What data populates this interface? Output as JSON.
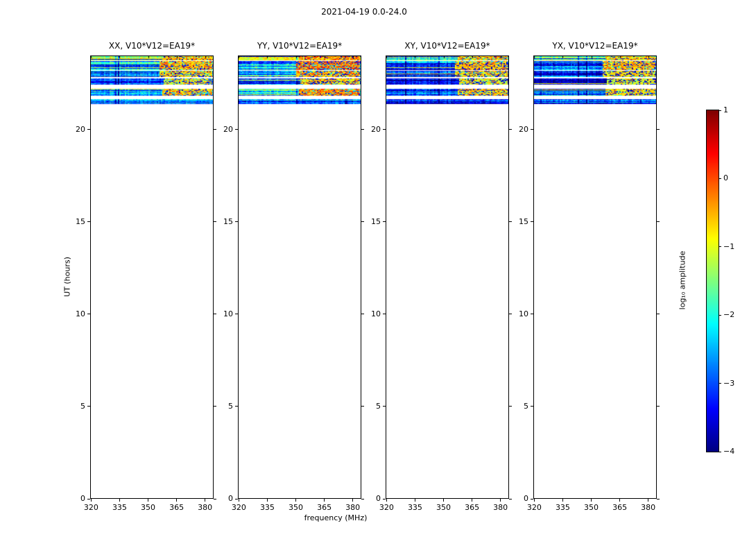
{
  "chart_data": {
    "type": "heatmap",
    "title": "2021-04-19 0.0-24.0",
    "panels": [
      {
        "key": "xx",
        "label": "XX, V10*V12=EA19*",
        "base_shift": 0,
        "hot_shift": 0,
        "hot_extend_mhz": 0,
        "seed": 101
      },
      {
        "key": "yy",
        "label": "YY, V10*V12=EA19*",
        "base_shift": 0.05,
        "hot_shift": 0.25,
        "hot_extend_mhz": 6,
        "seed": 202
      },
      {
        "key": "xy",
        "label": "XY, V10*V12=EA19*",
        "base_shift": -0.55,
        "hot_shift": -0.05,
        "hot_extend_mhz": 0,
        "seed": 303
      },
      {
        "key": "yx",
        "label": "YX, V10*V12=EA19*",
        "base_shift": -0.3,
        "hot_shift": -0.1,
        "hot_extend_mhz": 0,
        "seed": 404
      }
    ],
    "x": {
      "label": "frequency (MHz)",
      "range": [
        319.5,
        384.5
      ],
      "ticks": [
        320,
        335,
        350,
        365,
        380
      ]
    },
    "y": {
      "label": "UT (hours)",
      "range": [
        0,
        24
      ],
      "ticks": [
        0,
        5,
        10,
        15,
        20
      ]
    },
    "colorbar": {
      "label": "log₁₀ amplitude",
      "range": [
        -4,
        1
      ],
      "colormap": "jet",
      "ticks": [
        {
          "value": 1,
          "label": "1"
        },
        {
          "value": 0,
          "label": "0"
        },
        {
          "value": -1,
          "label": "−1"
        },
        {
          "value": -2,
          "label": "−2"
        },
        {
          "value": -3,
          "label": "−3"
        },
        {
          "value": -4,
          "label": "−4"
        }
      ]
    },
    "data_extent_ut": [
      21.3,
      24.0
    ],
    "bands": [
      {
        "ut": [
          23.72,
          24.0
        ],
        "base": -1.6,
        "noise": 1.2,
        "hot": {
          "freq_start": 357,
          "value": -0.5,
          "noise": 0.7
        }
      },
      {
        "ut": [
          23.22,
          23.7
        ],
        "base": -2.5,
        "noise": 1.0,
        "hot": {
          "freq_start": 356,
          "value": -0.45,
          "noise": 0.7
        }
      },
      {
        "ut": [
          22.82,
          23.16
        ],
        "base": -2.7,
        "noise": 0.9,
        "hot": {
          "freq_start": 356,
          "value": -0.7,
          "noise": 0.8
        }
      },
      {
        "ut": [
          22.42,
          22.76
        ],
        "base": -3.1,
        "noise": 0.8,
        "hot": {
          "freq_start": 358,
          "value": -0.9,
          "noise": 0.9
        }
      },
      {
        "ut": [
          21.84,
          22.18
        ],
        "base": -2.35,
        "noise": 0.7,
        "hot": {
          "freq_start": 357,
          "value": -0.55,
          "noise": 0.7
        }
      },
      {
        "ut": [
          21.36,
          21.62
        ],
        "base": -2.75,
        "noise": 0.8,
        "hot": null
      }
    ]
  }
}
